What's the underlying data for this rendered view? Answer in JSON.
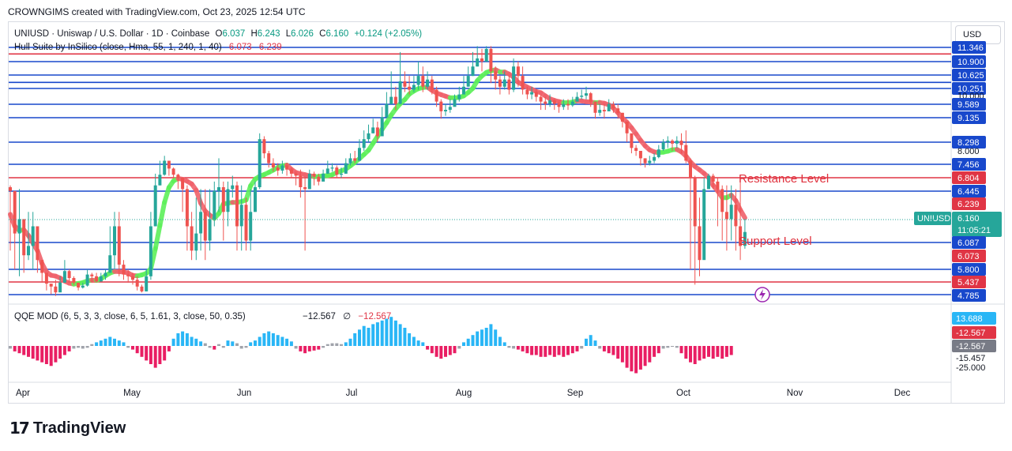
{
  "header": {
    "text": "CROWNGIMS created with TradingView.com, Oct 23, 2025 12:54 UTC"
  },
  "currency_label": "USD",
  "legend": {
    "symbol": "UNIUSD · Uniswap / U.S. Dollar · 1D · Coinbase",
    "o_label": "O",
    "o": "6.037",
    "h_label": "H",
    "h": "6.243",
    "l_label": "L",
    "l": "6.026",
    "c_label": "C",
    "c": "6.160",
    "change": "+0.124 (+2.05%)",
    "hull_name": "Hull Suite by InSilico (close, Hma, 55, 1, 240, 1, 40)",
    "hull_v1": "6.073",
    "hull_v2": "6.239"
  },
  "qqe": {
    "name": "QQE MOD (6, 5, 3, 3, close, 6, 5, 1.61, 3, close, 50, 0.35)",
    "v1": "−12.567",
    "v2": "∅",
    "v3": "−12.567",
    "axis_labels": [
      "13.688",
      "-12.567",
      "-12.567",
      "-15.457",
      "-25.000"
    ]
  },
  "annotations": {
    "resistance": "Resistance Level",
    "support": "Support Level"
  },
  "price_tags": {
    "symbol": "UNIUSD",
    "price": "6.160",
    "countdown": "11:05:21"
  },
  "colors": {
    "blue_line": "#1848cc",
    "red_line": "#e03545",
    "up_candle": "#26a69a",
    "down_candle": "#ef5350",
    "hull_up": "#5ef05a",
    "hull_down": "#f0626b",
    "qqe_blue": "#29b6f6",
    "qqe_pink": "#e91e63",
    "qqe_gray": "#a0a3ab",
    "annotation": "#e0313d"
  },
  "footer": {
    "brand": "TradingView"
  },
  "chart_data": {
    "type": "candlestick",
    "title": "UNIUSD · Uniswap / U.S. Dollar · 1D · Coinbase",
    "x_labels": [
      "Apr",
      "May",
      "Jun",
      "Jul",
      "Aug",
      "Sep",
      "Oct",
      "Nov",
      "Dec"
    ],
    "y_axis_labels": [
      "11.346",
      "10.900",
      "10.625",
      "10.251",
      "10.000",
      "9.589",
      "9.135",
      "8.298",
      "8.000",
      "7.456",
      "6.804",
      "6.445",
      "6.239",
      "6.160",
      "6.087",
      "6.073",
      "5.800",
      "5.437",
      "4.785"
    ],
    "horizontal_levels": [
      {
        "value": 11.346,
        "color": "blue"
      },
      {
        "value": 11.14,
        "color": "red"
      },
      {
        "value": 10.9,
        "color": "blue"
      },
      {
        "value": 10.625,
        "color": "blue"
      },
      {
        "value": 10.42,
        "color": "blue"
      },
      {
        "value": 10.251,
        "color": "blue"
      },
      {
        "value": 9.589,
        "color": "blue"
      },
      {
        "value": 9.135,
        "color": "blue"
      },
      {
        "value": 8.298,
        "color": "blue"
      },
      {
        "value": 7.456,
        "color": "blue"
      },
      {
        "value": 6.804,
        "color": "red"
      },
      {
        "value": 6.445,
        "color": "blue"
      },
      {
        "value": 6.087,
        "color": "blue"
      },
      {
        "value": 5.8,
        "color": "blue"
      },
      {
        "value": 5.437,
        "color": "red"
      },
      {
        "value": 4.785,
        "color": "blue"
      }
    ],
    "close": [
      6.45,
      6.15,
      6.25,
      5.95,
      6.05,
      6.2,
      5.9,
      5.7,
      5.35,
      5.2,
      4.9,
      5.4,
      5.75,
      5.55,
      5.4,
      5.15,
      5.25,
      5.65,
      5.6,
      5.45,
      5.6,
      5.7,
      5.95,
      6.2,
      5.85,
      5.65,
      5.6,
      5.5,
      5.2,
      4.95,
      5.6,
      6.2,
      6.6,
      6.95,
      7.6,
      7.25,
      6.95,
      6.8,
      6.5,
      6.2,
      6.0,
      6.15,
      6.3,
      6.1,
      6.25,
      6.45,
      6.55,
      6.3,
      6.5,
      6.6,
      6.2,
      6.35,
      6.1,
      6.3,
      6.55,
      8.4,
      7.9,
      7.5,
      7.3,
      7.15,
      7.4,
      7.2,
      7.0,
      6.9,
      6.55,
      6.5,
      7.0,
      6.85,
      6.7,
      7.0,
      7.25,
      7.3,
      6.95,
      7.0,
      7.5,
      7.7,
      7.6,
      8.1,
      8.4,
      8.6,
      8.8,
      8.5,
      9.15,
      9.6,
      9.9,
      9.6,
      10.45,
      10.3,
      10.2,
      10.35,
      10.6,
      10.3,
      10.5,
      10.2,
      9.7,
      9.35,
      9.4,
      9.5,
      9.8,
      10.0,
      10.3,
      10.6,
      10.8,
      11.0,
      10.9,
      11.3,
      10.7,
      10.5,
      10.3,
      10.5,
      10.2,
      10.8,
      10.6,
      10.2,
      10.0,
      10.1,
      9.9,
      9.7,
      9.6,
      9.75,
      9.6,
      9.5,
      9.6,
      9.55,
      9.7,
      9.9,
      9.95,
      10.05,
      9.7,
      9.3,
      9.4,
      9.35,
      9.6,
      9.45,
      9.3,
      9.0,
      8.6,
      8.1,
      8.0,
      7.7,
      7.5,
      7.6,
      7.75,
      8.05,
      8.3,
      8.35,
      8.25,
      8.35,
      8.2,
      7.6,
      6.8,
      6.2,
      5.9,
      6.5,
      6.9,
      6.7,
      6.5,
      6.3,
      6.25,
      6.35,
      6.2,
      6.05,
      6.16
    ],
    "wicks": [
      [
        6.6,
        6.0
      ],
      [
        6.3,
        5.8
      ],
      [
        6.5,
        5.6
      ],
      [
        6.1,
        5.7
      ],
      [
        6.3,
        5.9
      ],
      [
        6.3,
        5.8
      ],
      [
        6.2,
        5.7
      ],
      [
        5.9,
        5.4
      ],
      [
        5.6,
        5.0
      ],
      [
        5.3,
        4.8
      ],
      [
        5.5,
        4.7
      ],
      [
        5.6,
        5.2
      ],
      [
        5.9,
        5.4
      ],
      [
        5.8,
        5.4
      ],
      [
        5.6,
        5.3
      ],
      [
        5.4,
        5.0
      ],
      [
        5.4,
        5.1
      ],
      [
        5.8,
        5.2
      ],
      [
        5.7,
        5.4
      ],
      [
        5.7,
        5.4
      ],
      [
        5.7,
        5.5
      ],
      [
        5.8,
        5.5
      ],
      [
        6.2,
        5.7
      ],
      [
        6.3,
        5.8
      ],
      [
        6.3,
        5.6
      ],
      [
        5.9,
        5.5
      ],
      [
        5.8,
        5.4
      ],
      [
        5.7,
        5.3
      ],
      [
        5.6,
        5.0
      ],
      [
        5.3,
        4.9
      ],
      [
        5.8,
        4.95
      ],
      [
        6.3,
        5.5
      ],
      [
        7.0,
        6.2
      ],
      [
        7.6,
        6.6
      ],
      [
        7.8,
        6.9
      ],
      [
        7.6,
        6.9
      ],
      [
        7.3,
        6.8
      ],
      [
        7.0,
        6.5
      ],
      [
        6.8,
        6.3
      ],
      [
        6.6,
        6.0
      ],
      [
        6.3,
        5.9
      ],
      [
        6.4,
        5.9
      ],
      [
        6.5,
        6.0
      ],
      [
        6.5,
        5.9
      ],
      [
        6.5,
        6.0
      ],
      [
        6.7,
        6.2
      ],
      [
        7.7,
        6.3
      ],
      [
        6.7,
        6.1
      ],
      [
        6.7,
        6.2
      ],
      [
        6.9,
        6.4
      ],
      [
        6.7,
        6.0
      ],
      [
        6.6,
        6.0
      ],
      [
        6.4,
        6.0
      ],
      [
        6.5,
        6.0
      ],
      [
        6.7,
        6.3
      ],
      [
        8.6,
        6.5
      ],
      [
        8.5,
        7.7
      ],
      [
        8.0,
        7.3
      ],
      [
        7.7,
        7.1
      ],
      [
        7.5,
        6.9
      ],
      [
        7.6,
        7.0
      ],
      [
        7.5,
        6.9
      ],
      [
        7.3,
        6.8
      ],
      [
        7.1,
        6.6
      ],
      [
        7.2,
        6.4
      ],
      [
        6.8,
        6.0
      ],
      [
        7.2,
        6.5
      ],
      [
        7.1,
        6.6
      ],
      [
        7.0,
        6.6
      ],
      [
        7.2,
        6.8
      ],
      [
        7.6,
        7.0
      ],
      [
        7.5,
        7.1
      ],
      [
        7.4,
        6.8
      ],
      [
        7.3,
        6.8
      ],
      [
        7.7,
        7.0
      ],
      [
        7.9,
        7.4
      ],
      [
        8.0,
        7.5
      ],
      [
        8.4,
        7.6
      ],
      [
        8.7,
        8.0
      ],
      [
        8.9,
        8.3
      ],
      [
        9.1,
        8.6
      ],
      [
        9.0,
        8.3
      ],
      [
        9.5,
        8.9
      ],
      [
        10.1,
        9.3
      ],
      [
        10.7,
        9.6
      ],
      [
        10.3,
        9.4
      ],
      [
        11.2,
        9.9
      ],
      [
        10.7,
        10.1
      ],
      [
        10.6,
        10.0
      ],
      [
        10.6,
        10.1
      ],
      [
        10.9,
        10.2
      ],
      [
        10.8,
        10.1
      ],
      [
        10.7,
        10.2
      ],
      [
        10.6,
        10.0
      ],
      [
        10.3,
        9.5
      ],
      [
        9.8,
        9.1
      ],
      [
        9.6,
        9.2
      ],
      [
        9.8,
        9.3
      ],
      [
        10.0,
        9.6
      ],
      [
        10.3,
        9.7
      ],
      [
        10.6,
        10.1
      ],
      [
        10.8,
        10.3
      ],
      [
        11.2,
        10.6
      ],
      [
        11.4,
        10.8
      ],
      [
        11.3,
        10.7
      ],
      [
        11.4,
        10.9
      ],
      [
        11.4,
        10.4
      ],
      [
        10.8,
        10.2
      ],
      [
        10.6,
        10.0
      ],
      [
        10.7,
        10.2
      ],
      [
        10.6,
        10.0
      ],
      [
        11.0,
        10.1
      ],
      [
        10.9,
        10.3
      ],
      [
        10.8,
        10.0
      ],
      [
        10.3,
        9.8
      ],
      [
        10.3,
        9.8
      ],
      [
        10.2,
        9.7
      ],
      [
        10.0,
        9.4
      ],
      [
        9.9,
        9.4
      ],
      [
        10.0,
        9.5
      ],
      [
        9.8,
        9.4
      ],
      [
        9.7,
        9.3
      ],
      [
        9.8,
        9.4
      ],
      [
        9.8,
        9.4
      ],
      [
        9.9,
        9.5
      ],
      [
        10.1,
        9.7
      ],
      [
        10.2,
        9.8
      ],
      [
        10.3,
        9.8
      ],
      [
        10.1,
        9.5
      ],
      [
        9.7,
        9.1
      ],
      [
        9.6,
        9.2
      ],
      [
        9.6,
        9.1
      ],
      [
        9.8,
        9.4
      ],
      [
        9.7,
        9.3
      ],
      [
        9.6,
        9.1
      ],
      [
        9.3,
        8.8
      ],
      [
        9.0,
        8.3
      ],
      [
        8.4,
        7.9
      ],
      [
        8.2,
        7.8
      ],
      [
        7.9,
        7.4
      ],
      [
        7.7,
        7.3
      ],
      [
        7.8,
        7.4
      ],
      [
        7.9,
        7.5
      ],
      [
        8.2,
        7.7
      ],
      [
        8.4,
        8.0
      ],
      [
        8.5,
        8.1
      ],
      [
        8.4,
        8.0
      ],
      [
        8.5,
        8.1
      ],
      [
        8.6,
        7.9
      ],
      [
        8.7,
        7.5
      ],
      [
        7.7,
        5.8
      ],
      [
        6.9,
        5.3
      ],
      [
        6.4,
        5.6
      ],
      [
        6.8,
        6.1
      ],
      [
        7.0,
        6.5
      ],
      [
        7.0,
        6.5
      ],
      [
        6.8,
        6.2
      ],
      [
        6.6,
        6.1
      ],
      [
        6.6,
        6.0
      ],
      [
        6.6,
        6.1
      ],
      [
        6.5,
        6.0
      ],
      [
        6.8,
        5.9
      ],
      [
        6.25,
        6.02
      ]
    ],
    "hull_suite": {
      "name": "Hull Suite by InSilico (close, Hma, 55, 1, 240, 1, 40)",
      "values": [
        "6.073",
        "6.239"
      ]
    },
    "qqe_mod": {
      "name": "QQE MOD (6, 5, 3, 3, close, 6, 5, 1.61, 3, close, 50, 0.35)",
      "histogram": [
        -3,
        -6,
        -8,
        -10,
        -12,
        -14,
        -16,
        -18,
        -20,
        -22,
        -18,
        -14,
        -10,
        -6,
        -3,
        -2,
        -3,
        -2,
        2,
        4,
        6,
        8,
        10,
        8,
        6,
        4,
        -2,
        -4,
        -8,
        -12,
        -16,
        -20,
        -24,
        -20,
        -16,
        -6,
        8,
        14,
        16,
        14,
        10,
        8,
        5,
        3,
        -2,
        -4,
        2,
        -2,
        6,
        5,
        3,
        -3,
        -2,
        4,
        6,
        10,
        14,
        16,
        14,
        12,
        10,
        8,
        5,
        -3,
        -6,
        -8,
        -6,
        -5,
        -4,
        -2,
        2,
        3,
        3,
        2,
        4,
        8,
        14,
        18,
        22,
        20,
        24,
        26,
        28,
        30,
        32,
        28,
        24,
        20,
        14,
        10,
        6,
        4,
        -4,
        -8,
        -12,
        -14,
        -12,
        -10,
        -8,
        -3,
        4,
        8,
        12,
        16,
        18,
        20,
        24,
        18,
        10,
        4,
        -2,
        -3,
        -4,
        -6,
        -8,
        -10,
        -10,
        -12,
        -12,
        -10,
        -12,
        -10,
        -12,
        -10,
        -8,
        -6,
        -3,
        8,
        12,
        6,
        -3,
        -6,
        -8,
        -10,
        -14,
        -18,
        -24,
        -28,
        -30,
        -26,
        -22,
        -18,
        -12,
        -8,
        -3,
        -2,
        -1,
        -2,
        -8,
        -14,
        -18,
        -20,
        -16,
        -14,
        -12,
        -14,
        -12,
        -14,
        -12,
        -10
      ]
    }
  }
}
